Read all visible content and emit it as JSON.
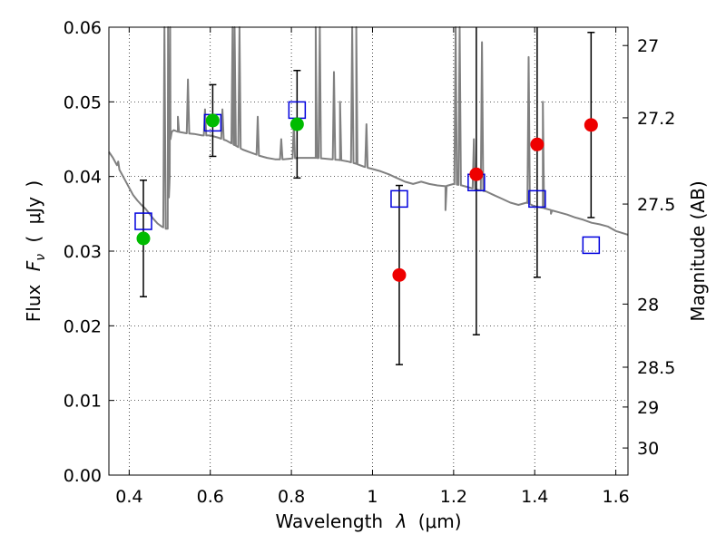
{
  "chart_data": {
    "type": "scatter",
    "xlabel": "Wavelength",
    "xlabel_symbol": "λ",
    "xlabel_unit_open": "(",
    "xlabel_unit": "μm",
    "xlabel_unit_close": ")",
    "ylabel": "Flux",
    "ylabel_symbol_main": "F",
    "ylabel_symbol_sub": "ν",
    "ylabel_unit_open": "(",
    "ylabel_unit": "μJy",
    "ylabel_unit_close": ")",
    "y2label": "Magnitude (AB)",
    "xlim": [
      0.35,
      1.63
    ],
    "ylim": [
      0.0,
      0.06
    ],
    "grid": true,
    "x_ticks": [
      {
        "value": 0.4,
        "label": "0.4"
      },
      {
        "value": 0.6,
        "label": "0.6"
      },
      {
        "value": 0.8,
        "label": "0.8"
      },
      {
        "value": 1.0,
        "label": "1"
      },
      {
        "value": 1.2,
        "label": "1.2"
      },
      {
        "value": 1.4,
        "label": "1.4"
      },
      {
        "value": 1.6,
        "label": "1.6"
      }
    ],
    "y_ticks": [
      {
        "value": 0.0,
        "label": "0.00"
      },
      {
        "value": 0.01,
        "label": "0.01"
      },
      {
        "value": 0.02,
        "label": "0.02"
      },
      {
        "value": 0.03,
        "label": "0.03"
      },
      {
        "value": 0.04,
        "label": "0.04"
      },
      {
        "value": 0.05,
        "label": "0.05"
      },
      {
        "value": 0.06,
        "label": "0.06"
      }
    ],
    "y2_ticks": [
      {
        "value": 27,
        "label": "27"
      },
      {
        "value": 27.2,
        "label": "27.2"
      },
      {
        "value": 27.5,
        "label": "27.5"
      },
      {
        "value": 28,
        "label": "28"
      },
      {
        "value": 28.5,
        "label": "28.5"
      },
      {
        "value": 29,
        "label": "29"
      },
      {
        "value": 30,
        "label": "30"
      }
    ],
    "series": [
      {
        "marker": "circle",
        "color": "#00bb00",
        "points": [
          {
            "x": 0.435,
            "y": 0.0317,
            "err": 0.0078
          },
          {
            "x": 0.606,
            "y": 0.0475,
            "err": 0.0048
          },
          {
            "x": 0.814,
            "y": 0.047,
            "err": 0.0072
          }
        ]
      },
      {
        "marker": "circle",
        "color": "#ee0000",
        "points": [
          {
            "x": 1.066,
            "y": 0.0268,
            "err": 0.012
          },
          {
            "x": 1.256,
            "y": 0.0403,
            "err": 0.0215
          },
          {
            "x": 1.406,
            "y": 0.0443,
            "err": 0.0178
          },
          {
            "x": 1.539,
            "y": 0.0469,
            "err": 0.0124
          }
        ]
      },
      {
        "marker": "open-square",
        "color": "#0000dd",
        "points": [
          {
            "x": 0.435,
            "y": 0.034
          },
          {
            "x": 0.606,
            "y": 0.0472
          },
          {
            "x": 0.814,
            "y": 0.0489
          },
          {
            "x": 1.066,
            "y": 0.037
          },
          {
            "x": 1.256,
            "y": 0.0392
          },
          {
            "x": 1.406,
            "y": 0.037
          },
          {
            "x": 1.539,
            "y": 0.0308
          }
        ]
      },
      {
        "marker": "line",
        "color": "#808080",
        "x": [
          0.35,
          0.36,
          0.37,
          0.38,
          0.39,
          0.4,
          0.41,
          0.42,
          0.43,
          0.44,
          0.45,
          0.46,
          0.47,
          0.48,
          0.49,
          0.495,
          0.5,
          0.502,
          0.505,
          0.51,
          0.52,
          0.54,
          0.56,
          0.58,
          0.6,
          0.62,
          0.64,
          0.66,
          0.68,
          0.7,
          0.72,
          0.74,
          0.76,
          0.78,
          0.8,
          0.82,
          0.84,
          0.86,
          0.88,
          0.9,
          0.92,
          0.94,
          0.96,
          0.98,
          1.0,
          1.02,
          1.04,
          1.06,
          1.08,
          1.1,
          1.12,
          1.14,
          1.16,
          1.18,
          1.2,
          1.22,
          1.24,
          1.26,
          1.28,
          1.3,
          1.32,
          1.34,
          1.36,
          1.38,
          1.4,
          1.42,
          1.44,
          1.46,
          1.48,
          1.5,
          1.52,
          1.54,
          1.56,
          1.58,
          1.6,
          1.63
        ],
        "y": [
          0.0433,
          0.0425,
          0.0415,
          0.0405,
          0.0395,
          0.0385,
          0.0375,
          0.0368,
          0.0362,
          0.0357,
          0.035,
          0.0343,
          0.0337,
          0.0333,
          0.033,
          0.033,
          0.04,
          0.045,
          0.046,
          0.0462,
          0.046,
          0.0458,
          0.0457,
          0.0455,
          0.0455,
          0.0452,
          0.0448,
          0.0442,
          0.0436,
          0.0432,
          0.0428,
          0.0425,
          0.0423,
          0.0423,
          0.0424,
          0.0425,
          0.0425,
          0.0425,
          0.0424,
          0.0423,
          0.0422,
          0.042,
          0.0417,
          0.0413,
          0.041,
          0.0407,
          0.0403,
          0.0398,
          0.0393,
          0.039,
          0.0393,
          0.039,
          0.0388,
          0.0387,
          0.039,
          0.0388,
          0.0385,
          0.0382,
          0.038,
          0.0375,
          0.037,
          0.0365,
          0.0362,
          0.0365,
          0.036,
          0.0358,
          0.0355,
          0.0352,
          0.0349,
          0.0345,
          0.0342,
          0.0338,
          0.0336,
          0.0333,
          0.0327,
          0.0322
        ]
      }
    ],
    "spectrum_spikes": [
      {
        "x": 0.373,
        "y": 0.042
      },
      {
        "x": 0.487,
        "y": 0.061
      },
      {
        "x": 0.496,
        "y": 0.061
      },
      {
        "x": 0.501,
        "y": 0.061
      },
      {
        "x": 0.52,
        "y": 0.048
      },
      {
        "x": 0.545,
        "y": 0.053
      },
      {
        "x": 0.587,
        "y": 0.049
      },
      {
        "x": 0.63,
        "y": 0.049
      },
      {
        "x": 0.655,
        "y": 0.061
      },
      {
        "x": 0.66,
        "y": 0.061
      },
      {
        "x": 0.672,
        "y": 0.061
      },
      {
        "x": 0.717,
        "y": 0.048
      },
      {
        "x": 0.775,
        "y": 0.045
      },
      {
        "x": 0.806,
        "y": 0.047
      },
      {
        "x": 0.86,
        "y": 0.061
      },
      {
        "x": 0.87,
        "y": 0.061
      },
      {
        "x": 0.905,
        "y": 0.054
      },
      {
        "x": 0.92,
        "y": 0.05
      },
      {
        "x": 0.95,
        "y": 0.061
      },
      {
        "x": 0.96,
        "y": 0.061
      },
      {
        "x": 0.985,
        "y": 0.047
      },
      {
        "x": 1.205,
        "y": 0.061
      },
      {
        "x": 1.215,
        "y": 0.061
      },
      {
        "x": 1.25,
        "y": 0.045
      },
      {
        "x": 1.27,
        "y": 0.058
      },
      {
        "x": 1.385,
        "y": 0.056
      },
      {
        "x": 1.42,
        "y": 0.05
      }
    ],
    "spectrum_dips": [
      {
        "x": 1.18,
        "y": 0.0355
      },
      {
        "x": 1.44,
        "y": 0.035
      }
    ]
  }
}
